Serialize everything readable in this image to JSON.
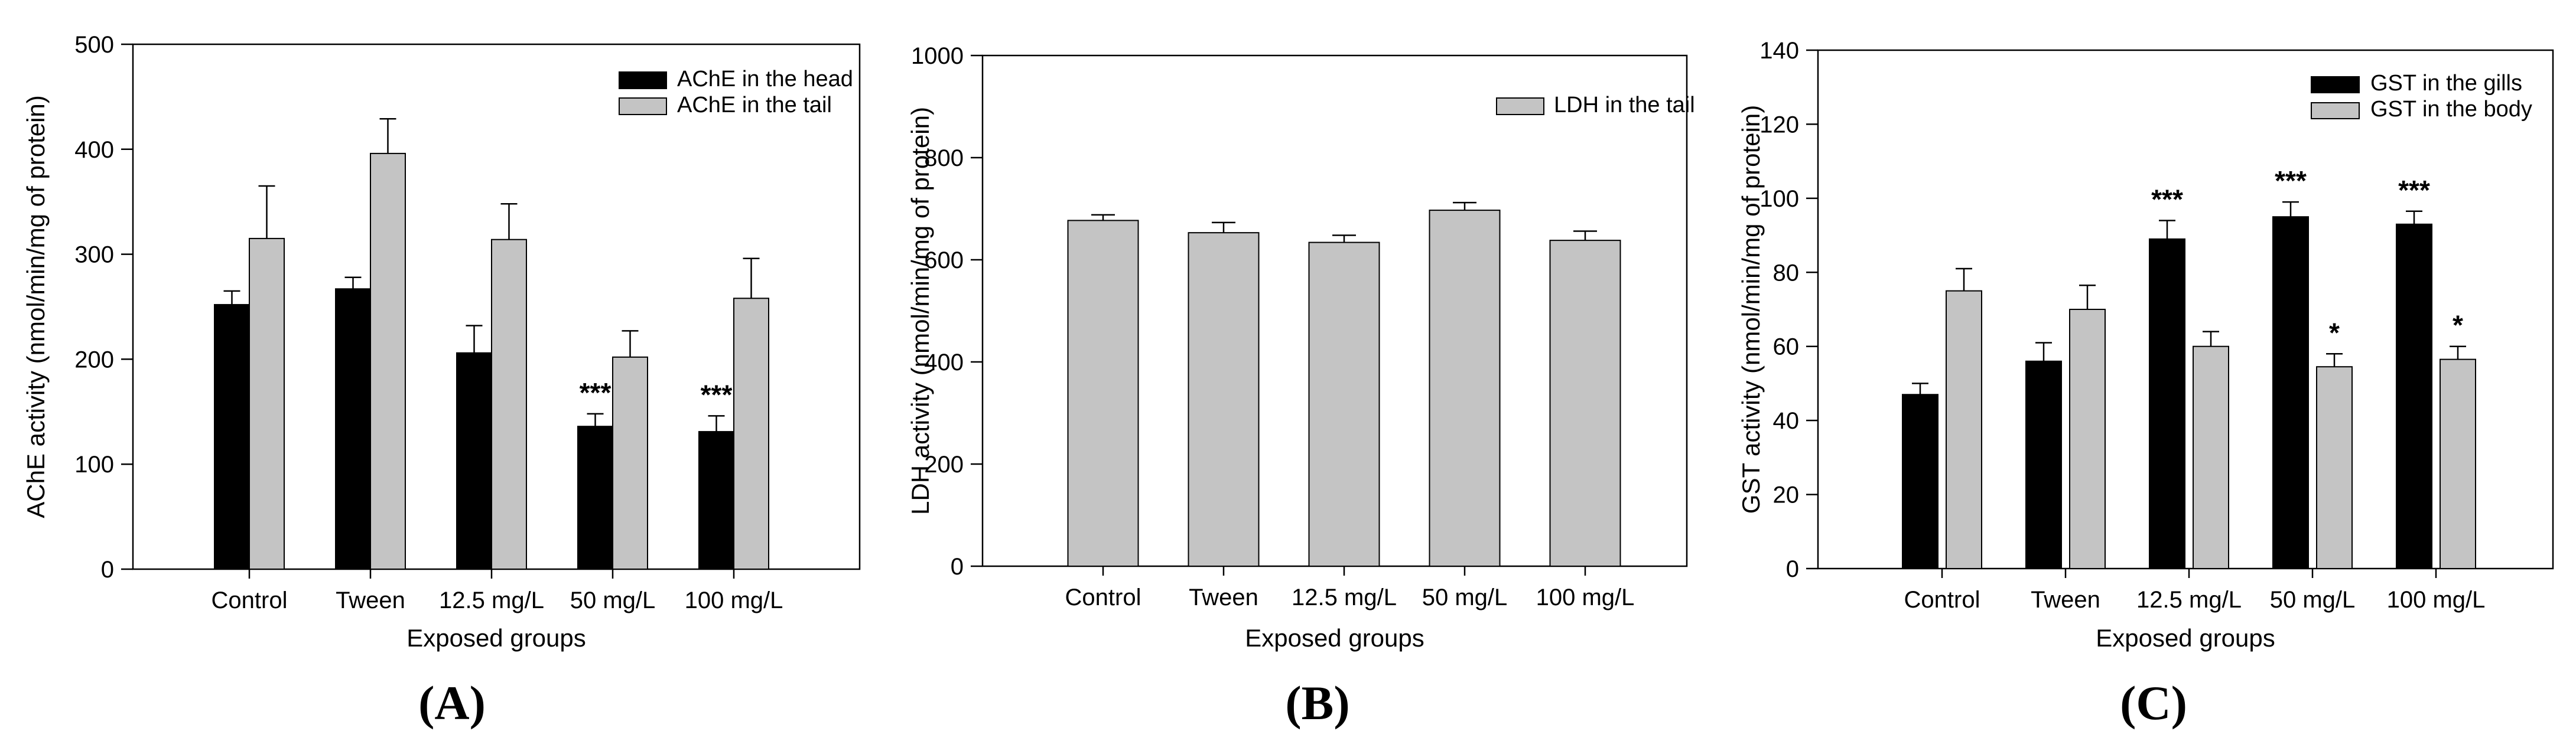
{
  "figure": {
    "background": "#ffffff",
    "axis_color": "#000000",
    "bar_black": "#000000",
    "bar_gray": "#c4c4c4"
  },
  "chart_data": [
    {
      "type": "bar",
      "panel_label": "(A)",
      "title": "",
      "xlabel": "Exposed groups",
      "ylabel": "AChE activity (nmol/min/mg of protein)",
      "categories": [
        "Control",
        "Tween",
        "12.5 mg/L",
        "50 mg/L",
        "100 mg/L"
      ],
      "ylim": [
        0,
        500
      ],
      "ytick_step": 100,
      "ytick_labels": [
        "0",
        "100",
        "200",
        "300",
        "400",
        "500"
      ],
      "grid": false,
      "legend_position": "top-right-inside",
      "error_bars": "upper",
      "series": [
        {
          "name": "AChE in the head",
          "color": "#000000",
          "values": [
            252,
            267,
            206,
            136,
            131
          ],
          "errors": [
            13,
            11,
            26,
            12,
            15
          ],
          "sig": [
            "",
            "",
            "",
            "***",
            "***"
          ]
        },
        {
          "name": "AChE in the tail",
          "color": "#c4c4c4",
          "values": [
            315,
            396,
            314,
            202,
            258
          ],
          "errors": [
            50,
            33,
            34,
            25,
            38
          ],
          "sig": [
            "",
            "",
            "",
            "",
            ""
          ]
        }
      ]
    },
    {
      "type": "bar",
      "panel_label": "(B)",
      "title": "",
      "xlabel": "Exposed groups",
      "ylabel": "LDH activity (nmol/min/mg of protein)",
      "categories": [
        "Control",
        "Tween",
        "12.5 mg/L",
        "50 mg/L",
        "100 mg/L"
      ],
      "ylim": [
        0,
        1000
      ],
      "ytick_step": 200,
      "ytick_labels": [
        "0",
        "200",
        "400",
        "600",
        "800",
        "1000"
      ],
      "grid": false,
      "legend_position": "top-right-inside",
      "error_bars": "upper",
      "series": [
        {
          "name": "LDH in the tail",
          "color": "#c4c4c4",
          "values": [
            677,
            653,
            634,
            697,
            638
          ],
          "errors": [
            11,
            20,
            14,
            15,
            18
          ],
          "sig": [
            "",
            "",
            "",
            "",
            ""
          ]
        }
      ]
    },
    {
      "type": "bar",
      "panel_label": "(C)",
      "title": "",
      "xlabel": "Exposed groups",
      "ylabel": "GST activity (nmol/min/mg of protein)",
      "categories": [
        "Control",
        "Tween",
        "12.5 mg/L",
        "50 mg/L",
        "100 mg/L"
      ],
      "ylim": [
        0,
        140
      ],
      "ytick_step": 20,
      "ytick_labels": [
        "0",
        "20",
        "40",
        "60",
        "80",
        "100",
        "120",
        "140"
      ],
      "grid": false,
      "legend_position": "top-right-inside",
      "error_bars": "upper",
      "series": [
        {
          "name": "GST in the gills",
          "color": "#000000",
          "values": [
            47,
            56,
            89,
            95,
            93
          ],
          "errors": [
            3,
            5,
            5,
            4,
            3.5
          ],
          "sig": [
            "",
            "",
            "***",
            "***",
            "***"
          ]
        },
        {
          "name": "GST in the body",
          "color": "#c4c4c4",
          "values": [
            75,
            70,
            60,
            54.5,
            56.5
          ],
          "errors": [
            6,
            6.5,
            4,
            3.5,
            3.5
          ],
          "sig": [
            "",
            "",
            "",
            "*",
            "*"
          ]
        }
      ]
    }
  ]
}
